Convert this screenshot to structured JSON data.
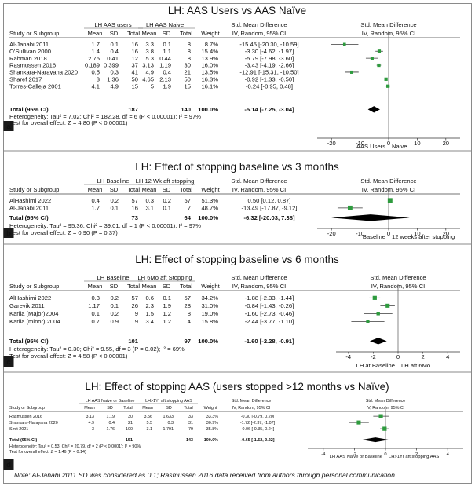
{
  "note": "Note: Al-Janabi 2011 SD was considered as 0.1; Rasmussen 2016 data received from authors through personal communication",
  "colors": {
    "frame": "#8a8a8a",
    "marker": "#2e9b3e",
    "line": "#3a3a3a",
    "diamond": "#000000",
    "label_bg": "#1a1a1a",
    "label_text": "#ffffff"
  },
  "chart_data": [
    {
      "panel_label": "a",
      "type": "forest",
      "title": "LH: AAS Users vs AAS Naïve",
      "group1_header": "LH AAS users",
      "group2_header": "LH AAS Naive",
      "col_study": "Study or Subgroup",
      "col_mean": "Mean",
      "col_sd": "SD",
      "col_total": "Total",
      "col_weight": "Weight",
      "effect_header": "Std. Mean Difference",
      "effect_subheader": "IV, Random, 95% CI",
      "plot_header": "Std. Mean Difference",
      "plot_subheader": "IV, Random, 95% CI",
      "studies": [
        {
          "name": "Al-Janabi 2011",
          "m1": "1.7",
          "sd1": "0.1",
          "n1": "16",
          "m2": "3.3",
          "sd2": "0.1",
          "n2": "8",
          "weight": "8.7%",
          "ci_text": "-15.45 [-20.30, -10.59]",
          "est": -15.45,
          "lo": -20.3,
          "hi": -10.59,
          "w": 8.7
        },
        {
          "name": "O'Sullivan 2000",
          "m1": "1.4",
          "sd1": "0.4",
          "n1": "16",
          "m2": "3.8",
          "sd2": "1.1",
          "n2": "8",
          "weight": "15.4%",
          "ci_text": "-3.30 [-4.62, -1.97]",
          "est": -3.3,
          "lo": -4.62,
          "hi": -1.97,
          "w": 15.4
        },
        {
          "name": "Rahman 2018",
          "m1": "2.75",
          "sd1": "0.41",
          "n1": "12",
          "m2": "5.3",
          "sd2": "0.44",
          "n2": "8",
          "weight": "13.9%",
          "ci_text": "-5.79 [-7.98, -3.60]",
          "est": -5.79,
          "lo": -7.98,
          "hi": -3.6,
          "w": 13.9
        },
        {
          "name": "Rasmussen 2016",
          "m1": "0.189",
          "sd1": "0.399",
          "n1": "37",
          "m2": "3.13",
          "sd2": "1.19",
          "n2": "30",
          "weight": "16.0%",
          "ci_text": "-3.43 [-4.19, -2.66]",
          "est": -3.43,
          "lo": -4.19,
          "hi": -2.66,
          "w": 16.0
        },
        {
          "name": "Shankara-Narayana 2020",
          "m1": "0.5",
          "sd1": "0.3",
          "n1": "41",
          "m2": "4.9",
          "sd2": "0.4",
          "n2": "21",
          "weight": "13.5%",
          "ci_text": "-12.91 [-15.31, -10.50]",
          "est": -12.91,
          "lo": -15.31,
          "hi": -10.5,
          "w": 13.5
        },
        {
          "name": "Sharef 2017",
          "m1": "3",
          "sd1": "1.36",
          "n1": "50",
          "m2": "4.65",
          "sd2": "2.13",
          "n2": "50",
          "weight": "16.3%",
          "ci_text": "-0.92 [-1.33, -0.50]",
          "est": -0.92,
          "lo": -1.33,
          "hi": -0.5,
          "w": 16.3
        },
        {
          "name": "Torres-Calleja 2001",
          "m1": "4.1",
          "sd1": "4.9",
          "n1": "15",
          "m2": "5",
          "sd2": "1.9",
          "n2": "15",
          "weight": "16.1%",
          "ci_text": "-0.24 [-0.95, 0.48]",
          "est": -0.24,
          "lo": -0.95,
          "hi": 0.48,
          "w": 16.1
        }
      ],
      "total": {
        "label": "Total (95% CI)",
        "n1": "187",
        "n2": "140",
        "weight": "100.0%",
        "ci_text": "-5.14 [-7.25, -3.04]",
        "est": -5.14,
        "lo": -7.25,
        "hi": -3.04
      },
      "heterogeneity": "Heterogeneity: Tau² = 7.02; Chi² = 182.28, df = 6 (P < 0.00001); I² = 97%",
      "overall_test": "Test for overall effect: Z = 4.80 (P < 0.00001)",
      "xlim": [
        -25,
        25
      ],
      "ticks": [
        -20,
        -10,
        0,
        10,
        20
      ],
      "axis_left_label": "AAS Users",
      "axis_right_label": "Naive"
    },
    {
      "panel_label": "b",
      "type": "forest",
      "title": "LH: Effect of stopping baseline vs 3 months",
      "group1_header": "LH Baseline",
      "group2_header": "LH 12 Wk aft stopping",
      "col_study": "Study or Subgroup",
      "col_mean": "Mean",
      "col_sd": "SD",
      "col_total": "Total",
      "col_weight": "Weight",
      "effect_header": "Std. Mean Difference",
      "effect_subheader": "IV, Random, 95% CI",
      "plot_header": "Std. Mean Difference",
      "plot_subheader": "IV, Random, 95% CI",
      "studies": [
        {
          "name": "AlHashimi 2022",
          "m1": "0.4",
          "sd1": "0.2",
          "n1": "57",
          "m2": "0.3",
          "sd2": "0.2",
          "n2": "57",
          "weight": "51.3%",
          "ci_text": "0.50 [0.12, 0.87]",
          "est": 0.5,
          "lo": 0.12,
          "hi": 0.87,
          "w": 51.3
        },
        {
          "name": "Al-Janabi 2011",
          "m1": "1.7",
          "sd1": "0.1",
          "n1": "16",
          "m2": "3.1",
          "sd2": "0.1",
          "n2": "7",
          "weight": "48.7%",
          "ci_text": "-13.49 [-17.87, -9.12]",
          "est": -13.49,
          "lo": -17.87,
          "hi": -9.12,
          "w": 48.7
        }
      ],
      "total": {
        "label": "Total (95% CI)",
        "n1": "73",
        "n2": "64",
        "weight": "100.0%",
        "ci_text": "-6.32 [-20.03, 7.38]",
        "est": -6.32,
        "lo": -20.03,
        "hi": 7.38
      },
      "heterogeneity": "Heterogeneity: Tau² = 95.36; Chi² = 39.01, df = 1 (P < 0.00001); I² = 97%",
      "overall_test": "Test for overall effect: Z = 0.90 (P = 0.37)",
      "xlim": [
        -25,
        25
      ],
      "ticks": [
        -20,
        -10,
        0,
        10,
        20
      ],
      "axis_left_label": "Baseline",
      "axis_right_label": "12 weeks after stopping"
    },
    {
      "panel_label": "c",
      "type": "forest",
      "title": "LH: Effect of stopping baseline vs 6 months",
      "group1_header": "LH Baseline",
      "group2_header": "LH 6Mo aft Stopping",
      "col_study": "Study or Subgroup",
      "col_mean": "Mean",
      "col_sd": "SD",
      "col_total": "Total",
      "col_weight": "Weight",
      "effect_header": "Std. Mean Difference",
      "effect_subheader": "IV, Random, 95% CI",
      "plot_header": "Std. Mean Difference",
      "plot_subheader": "IV, Random, 95% CI",
      "studies": [
        {
          "name": "AlHashimi 2022",
          "m1": "0.3",
          "sd1": "0.2",
          "n1": "57",
          "m2": "0.6",
          "sd2": "0.1",
          "n2": "57",
          "weight": "34.2%",
          "ci_text": "-1.88 [-2.33, -1.44]",
          "est": -1.88,
          "lo": -2.33,
          "hi": -1.44,
          "w": 34.2
        },
        {
          "name": "Garevik 2011",
          "m1": "1.17",
          "sd1": "0.1",
          "n1": "26",
          "m2": "2.3",
          "sd2": "1.9",
          "n2": "28",
          "weight": "31.0%",
          "ci_text": "-0.84 [-1.43, -0.26]",
          "est": -0.84,
          "lo": -1.43,
          "hi": -0.26,
          "w": 31.0
        },
        {
          "name": "Karila (Major)2004",
          "m1": "0.1",
          "sd1": "0.2",
          "n1": "9",
          "m2": "1.5",
          "sd2": "1.2",
          "n2": "8",
          "weight": "19.0%",
          "ci_text": "-1.60 [-2.73, -0.46]",
          "est": -1.6,
          "lo": -2.73,
          "hi": -0.46,
          "w": 19.0
        },
        {
          "name": "Karila (minor) 2004",
          "m1": "0.7",
          "sd1": "0.9",
          "n1": "9",
          "m2": "3.4",
          "sd2": "1.2",
          "n2": "4",
          "weight": "15.8%",
          "ci_text": "-2.44 [-3.77, -1.10]",
          "est": -2.44,
          "lo": -3.77,
          "hi": -1.1,
          "w": 15.8
        }
      ],
      "total": {
        "label": "Total (95% CI)",
        "n1": "101",
        "n2": "97",
        "weight": "100.0%",
        "ci_text": "-1.60 [-2.28, -0.91]",
        "est": -1.6,
        "lo": -2.28,
        "hi": -0.91
      },
      "heterogeneity": "Heterogeneity: Tau² = 0.30; Chi² = 9.55, df = 3 (P = 0.02); I² = 69%",
      "overall_test": "Test for overall effect: Z = 4.58 (P < 0.00001)",
      "xlim": [
        -5,
        5
      ],
      "ticks": [
        -4,
        -2,
        0,
        2,
        4
      ],
      "axis_left_label": "LH at Baseline",
      "axis_right_label": "LH aft 6Mo"
    },
    {
      "panel_label": "d",
      "type": "forest",
      "title": "LH: Effect of stopping AAS (users stopped >12 months vs Naïve)",
      "group1_header": "LH AAS Naive or Baseline",
      "group2_header": "LH>1Yr aft stopping AAS",
      "col_study": "Study or Subgroup",
      "col_mean": "Mean",
      "col_sd": "SD",
      "col_total": "Total",
      "col_weight": "Weight",
      "effect_header": "Std. Mean Difference",
      "effect_subheader": "IV, Random, 95% CI",
      "plot_header": "Std. Mean Difference",
      "plot_subheader": "IV, Random, 95% CI",
      "studies": [
        {
          "name": "Rasmussen 2016",
          "m1": "3.13",
          "sd1": "1.19",
          "n1": "30",
          "m2": "3.56",
          "sd2": "1.633",
          "n2": "33",
          "weight": "33.3%",
          "ci_text": "-0.30 [-0.79, 0.20]",
          "est": -0.3,
          "lo": -0.79,
          "hi": 0.2,
          "w": 33.3
        },
        {
          "name": "Shankara-Narayana 2020",
          "m1": "4.9",
          "sd1": "0.4",
          "n1": "21",
          "m2": "5.5",
          "sd2": "0.3",
          "n2": "31",
          "weight": "30.9%",
          "ci_text": "-1.72 [-2.37, -1.07]",
          "est": -1.72,
          "lo": -2.37,
          "hi": -1.07,
          "w": 30.9
        },
        {
          "name": "Smit 2021",
          "m1": "3",
          "sd1": "1.76",
          "n1": "100",
          "m2": "3.1",
          "sd2": "1.791",
          "n2": "79",
          "weight": "35.8%",
          "ci_text": "-0.06 [-0.35, 0.24]",
          "est": -0.06,
          "lo": -0.35,
          "hi": 0.24,
          "w": 35.8
        }
      ],
      "total": {
        "label": "Total (95% CI)",
        "n1": "151",
        "n2": "143",
        "weight": "100.0%",
        "ci_text": "-0.65 [-1.52, 0.22]",
        "est": -0.65,
        "lo": -1.52,
        "hi": 0.22
      },
      "heterogeneity": "Heterogeneity: Tau² = 0.53; Chi² = 20.79, df = 2 (P < 0.0001); I² = 90%",
      "overall_test": "Test for overall effect: Z = 1.46 (P = 0.14)",
      "xlim": [
        -5,
        5
      ],
      "ticks": [
        -4,
        -2,
        0,
        2,
        4
      ],
      "axis_left_label": "LH AAS Naive or Baseline",
      "axis_right_label": "LH>1Yr aft stopping AAS"
    }
  ]
}
